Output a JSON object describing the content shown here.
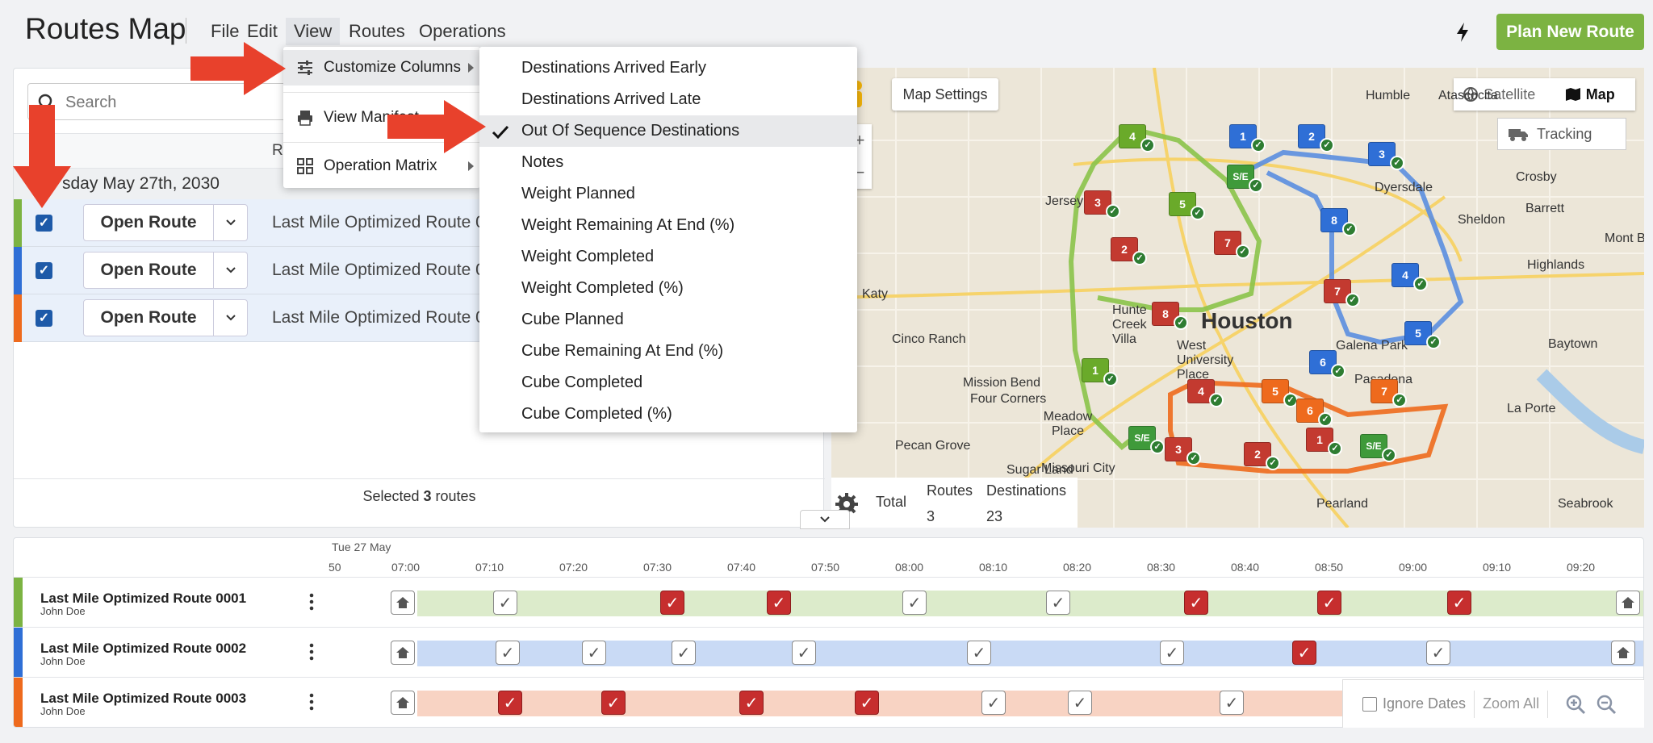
{
  "app": {
    "title": "Routes Map",
    "menus": [
      "File",
      "Edit",
      "View",
      "Routes",
      "Operations"
    ],
    "plan_button": "Plan New Route"
  },
  "view_menu": {
    "items": [
      {
        "label": "Customize Columns",
        "icon": "sliders-icon",
        "has_submenu": true
      },
      {
        "label": "View Manifest",
        "icon": "printer-icon",
        "has_submenu": false
      },
      {
        "label": "Operation Matrix",
        "icon": "grid-icon",
        "has_submenu": true
      }
    ]
  },
  "columns_submenu": {
    "items": [
      {
        "label": "Destinations Arrived Early",
        "checked": false
      },
      {
        "label": "Destinations Arrived Late",
        "checked": false
      },
      {
        "label": "Out Of Sequence Destinations",
        "checked": true
      },
      {
        "label": "Notes",
        "checked": false
      },
      {
        "label": "Weight Planned",
        "checked": false
      },
      {
        "label": "Weight Remaining At End (%)",
        "checked": false
      },
      {
        "label": "Weight Completed",
        "checked": false
      },
      {
        "label": "Weight Completed (%)",
        "checked": false
      },
      {
        "label": "Cube Planned",
        "checked": false
      },
      {
        "label": "Cube Remaining At End (%)",
        "checked": false
      },
      {
        "label": "Cube Completed",
        "checked": false
      },
      {
        "label": "Cube Completed (%)",
        "checked": false
      }
    ]
  },
  "left_panel": {
    "search_placeholder": "Search",
    "column_header_partial": "Ro",
    "date_group": "sday May 27th, 2030",
    "open_button": "Open Route",
    "routes": [
      {
        "name": "Last Mile Optimized Route 00",
        "color": "#7cb342",
        "checked": true
      },
      {
        "name": "Last Mile Optimized Route 00",
        "color": "#2f6fd6",
        "checked": true
      },
      {
        "name": "Last Mile Optimized Route 00",
        "color": "#ee6a1d",
        "checked": true
      }
    ],
    "selected_prefix": "Selected ",
    "selected_count": "3",
    "selected_suffix": " routes"
  },
  "map": {
    "settings_label": "Map Settings",
    "satellite_label": "Satellite",
    "map_label": "Map",
    "tracking_label": "Tracking",
    "main_city": "Houston",
    "cities": [
      "Humble",
      "Atascocita",
      "Dyersdale",
      "Crosby",
      "Sheldon",
      "Barrett",
      "Mont Be",
      "Highlands",
      "Katy",
      "Cinco Ranch",
      "Hunte Creek Villa",
      "West University Place",
      "Galena Park",
      "Baytown",
      "Mission Bend",
      "Four Corners",
      "Pasadena",
      "La Porte",
      "Meadow Place",
      "Pecan Grove",
      "Sugar Land",
      "Missouri City",
      "Pearland",
      "Seabrook",
      "Jersey Vi"
    ],
    "totals": {
      "total_label": "Total",
      "routes_header": "Routes",
      "destinations_header": "Destinations",
      "routes_value": "3",
      "destinations_value": "23"
    }
  },
  "timeline": {
    "date": "Tue 27 May",
    "ticks": [
      "50",
      "07:00",
      "07:10",
      "07:20",
      "07:30",
      "07:40",
      "07:50",
      "08:00",
      "08:10",
      "08:20",
      "08:30",
      "08:40",
      "08:50",
      "09:00",
      "09:10",
      "09:20"
    ],
    "rows": [
      {
        "name": "Last Mile Optimized Route 0001",
        "driver": "John Doe",
        "color": "#7cb342",
        "bar": "#dcebcb"
      },
      {
        "name": "Last Mile Optimized Route 0002",
        "driver": "John Doe",
        "color": "#2f6fd6",
        "bar": "#c9daf5"
      },
      {
        "name": "Last Mile Optimized Route 0003",
        "driver": "John Doe",
        "color": "#ee6a1d",
        "bar": "#f8d3c3"
      }
    ],
    "ignore_dates_label": "Ignore Dates",
    "zoom_all_label": "Zoom All"
  }
}
